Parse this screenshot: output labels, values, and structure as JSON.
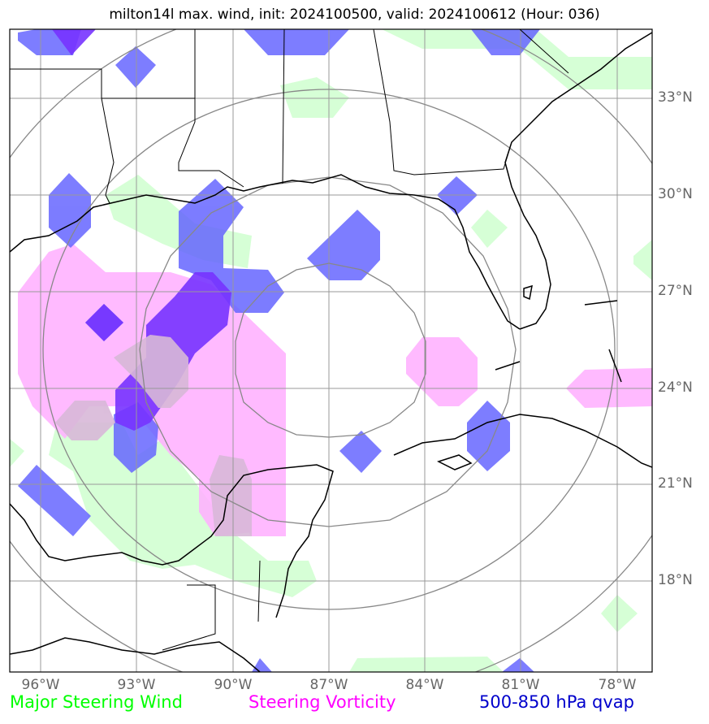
{
  "title": "milton14l max. wind, init: 2024100500, valid: 2024100612 (Hour: 036)",
  "lat_labels": [
    "33°N",
    "30°N",
    "27°N",
    "24°N",
    "21°N",
    "18°N"
  ],
  "lon_labels": [
    "96°W",
    "93°W",
    "90°W",
    "87°W",
    "84°W",
    "81°W",
    "78°W"
  ],
  "legend": [
    {
      "label": "Major Steering Wind",
      "color": "#00ff00"
    },
    {
      "label": "Steering Vorticity",
      "color": "#ff00ff"
    },
    {
      "label": "500-850 hPa qvap",
      "color": "#0000cc"
    }
  ],
  "colors": {
    "steering_wind_fill": "#ccffcc",
    "vorticity_fill": "#ffb3ff",
    "qvap_fill": "#6666ff",
    "overlap_fill": "#7733ff",
    "grid": "#999999",
    "range_rings": "#888888",
    "coastline": "#000000"
  }
}
